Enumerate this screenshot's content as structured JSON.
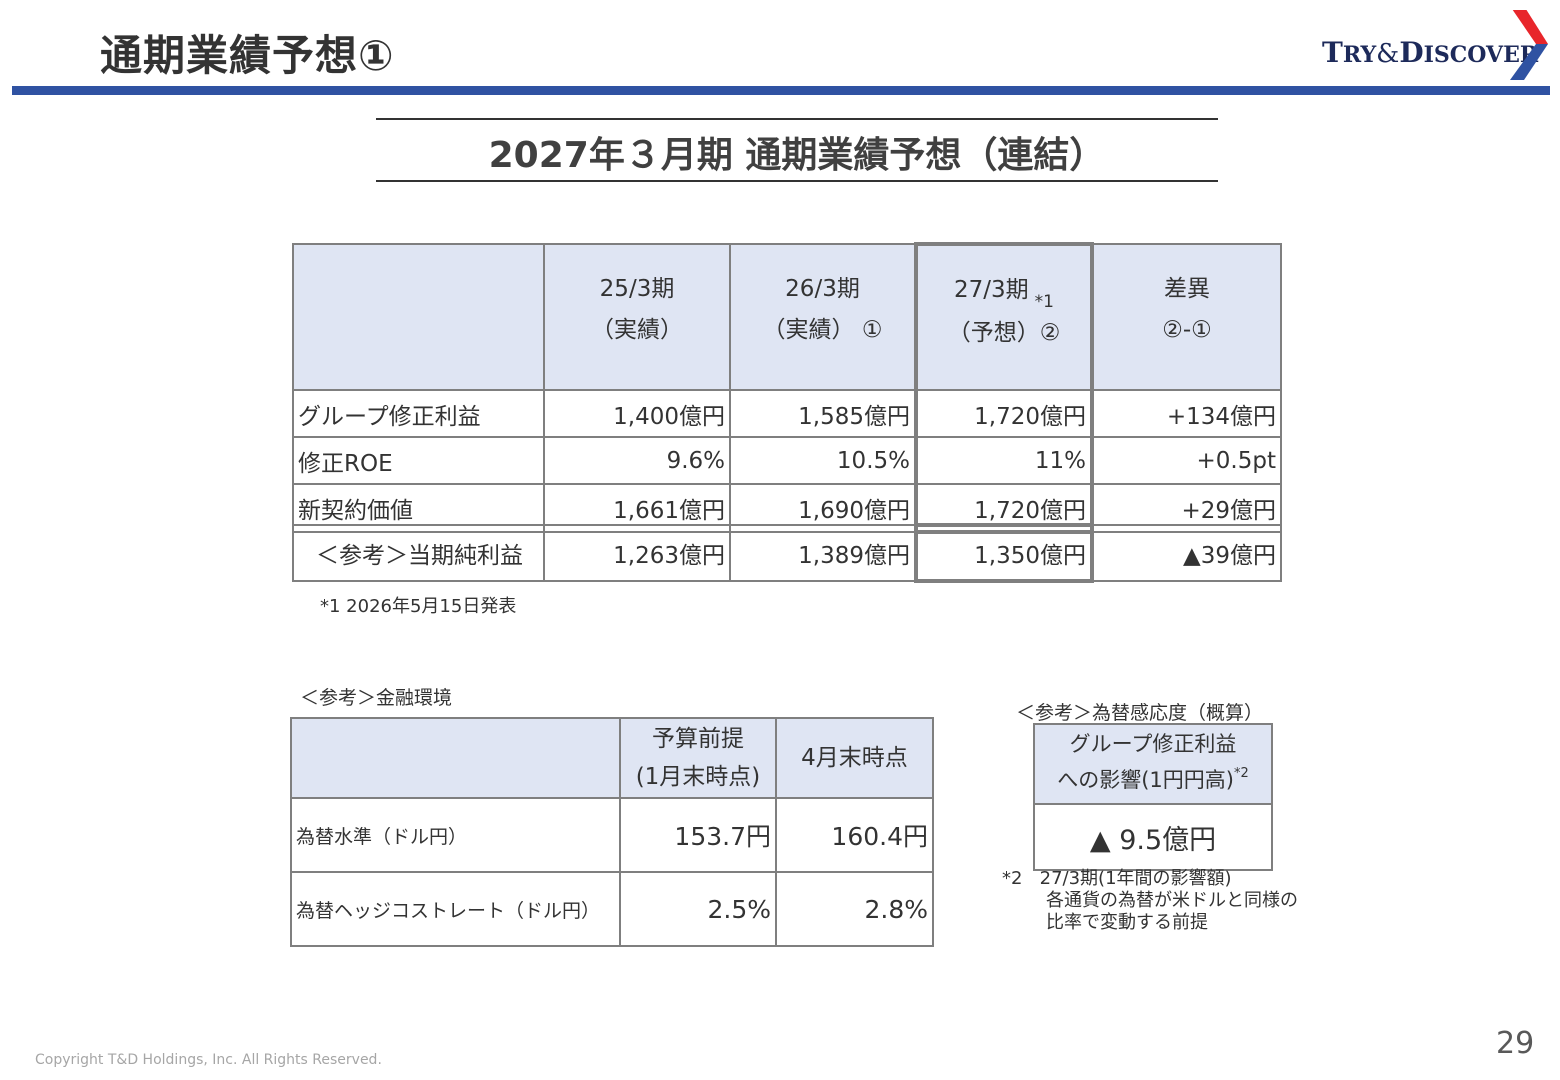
{
  "header": {
    "title": "通期業績予想①",
    "logo_text": {
      "t": "T",
      "ry": "RY",
      "amp": "&",
      "d": "D",
      "iscover": "ISCOVER"
    },
    "bar_color": "#2f52a2",
    "logo_chevron_colors": [
      "#e8262b",
      "#2f52a2"
    ]
  },
  "subtitle": "2027年３月期 通期業績予想（連結）",
  "main_table": {
    "headers": [
      {
        "line1": "",
        "line2": ""
      },
      {
        "line1": "25/3期",
        "line2": "（実績）"
      },
      {
        "line1": "26/3期",
        "line2": "（実績） ①"
      },
      {
        "line1": "27/3期",
        "sup": "*1",
        "line2": "（予想）②"
      },
      {
        "line1": "差異",
        "line2": "②-①"
      }
    ],
    "rows": [
      {
        "label": "グループ修正利益",
        "v1": "1,400億円",
        "v2": "1,585億円",
        "v3": "1,720億円",
        "diff": "+134億円"
      },
      {
        "label": "修正ROE",
        "v1": "9.6%",
        "v2": "10.5%",
        "v3": "11%",
        "diff": "+0.5pt"
      },
      {
        "label": "新契約価値",
        "v1": "1,661億円",
        "v2": "1,690億円",
        "v3": "1,720億円",
        "diff": "+29億円"
      }
    ]
  },
  "reference_row": {
    "label": "＜参考＞当期純利益",
    "v1": "1,263億円",
    "v2": "1,389億円",
    "v3": "1,350億円",
    "diff": "▲39億円"
  },
  "note1": "*1 2026年5月15日発表",
  "finance": {
    "caption": "＜参考＞金融環境",
    "headers": [
      {
        "line1": "",
        "line2": ""
      },
      {
        "line1": "予算前提",
        "line2": "(1月末時点)"
      },
      {
        "line1": "4月末時点",
        "line2": ""
      }
    ],
    "rows": [
      {
        "label": "為替水準（ドル円）",
        "budget": "153.7円",
        "april": "160.4円"
      },
      {
        "label": "為替ヘッジコストレート（ドル円）",
        "budget": "2.5%",
        "april": "2.8%"
      }
    ]
  },
  "fx_sensitivity": {
    "caption": "＜参考＞為替感応度（概算）",
    "header_line1": "グループ修正利益",
    "header_line2": "への影響(1円円高)",
    "header_sup": "*2",
    "value": "▲ 9.5億円"
  },
  "note2": {
    "mark": "*2",
    "line1": "27/3期(1年間の影響額)",
    "line2": "各通貨の為替が米ドルと同様の",
    "line3": "比率で変動する前提"
  },
  "page_number": "29",
  "copyright": "Copyright T&D Holdings, Inc. All Rights Reserved."
}
